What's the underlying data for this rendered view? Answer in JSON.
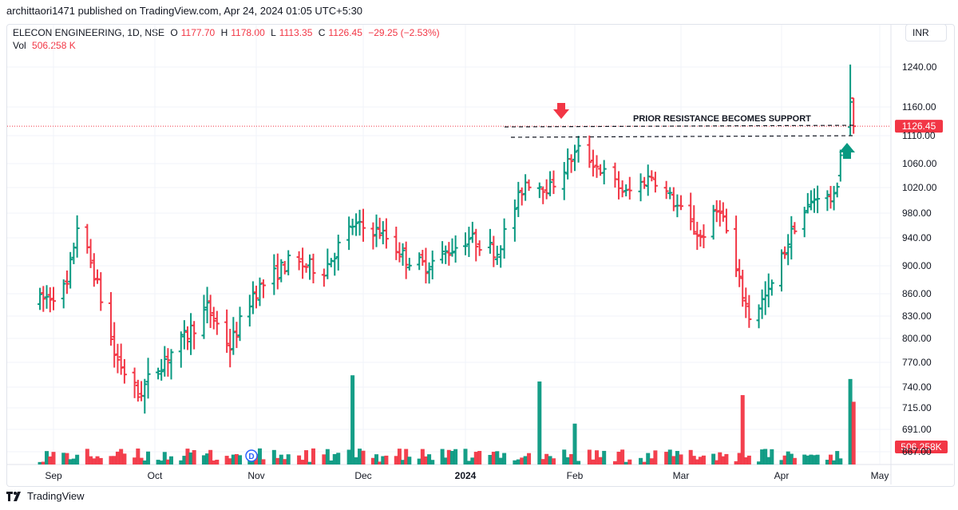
{
  "publisher_line": "archittaori1471 published on TradingView.com, Apr 24, 2024 01:05 UTC+5:30",
  "legend": {
    "symbol": "ELECON ENGINEERING, 1D, NSE",
    "open_label": "O",
    "open": "1177.70",
    "high_label": "H",
    "high": "1178.00",
    "low_label": "L",
    "low": "1113.35",
    "close_label": "C",
    "close": "1126.45",
    "change": "−29.25 (−2.53%)",
    "vol_label": "Vol",
    "vol": "506.258 K"
  },
  "currency": "INR",
  "footer_brand": "TradingView",
  "colors": {
    "up": "#089981",
    "down": "#f23645",
    "grid": "#f0f3fa",
    "text": "#131722"
  },
  "chart_data": {
    "type": "bar",
    "annotation": "PRIOR RESISTANCE BECOMES SUPPORT",
    "last_price_label": "1126.45",
    "last_volume_label": "506.258K",
    "y_ticks": [
      "1240.00",
      "1160.00",
      "1110.00",
      "1060.00",
      "1020.00",
      "980.00",
      "940.00",
      "900.00",
      "860.00",
      "830.00",
      "800.00",
      "770.00",
      "740.00",
      "715.00",
      "691.00",
      "667.00"
    ],
    "x_ticks": [
      "Sep",
      "Oct",
      "Nov",
      "Dec",
      "2024",
      "Feb",
      "Mar",
      "Apr",
      "May"
    ],
    "ohlc_anchors": [
      [
        "2023-08-28",
        850
      ],
      [
        "2023-09-05",
        870
      ],
      [
        "2023-09-08",
        960
      ],
      [
        "2023-09-13",
        890
      ],
      [
        "2023-09-19",
        780
      ],
      [
        "2023-09-26",
        730
      ],
      [
        "2023-10-03",
        770
      ],
      [
        "2023-10-10",
        800
      ],
      [
        "2023-10-17",
        840
      ],
      [
        "2023-10-24",
        790
      ],
      [
        "2023-10-31",
        860
      ],
      [
        "2023-11-10",
        905
      ],
      [
        "2023-11-20",
        895
      ],
      [
        "2023-11-28",
        960
      ],
      [
        "2023-12-06",
        950
      ],
      [
        "2023-12-14",
        910
      ],
      [
        "2023-12-20",
        900
      ],
      [
        "2024-01-02",
        940
      ],
      [
        "2024-01-10",
        920
      ],
      [
        "2024-01-18",
        1030
      ],
      [
        "2024-01-25",
        1020
      ],
      [
        "2024-02-02",
        1085
      ],
      [
        "2024-02-08",
        1050
      ],
      [
        "2024-02-15",
        1010
      ],
      [
        "2024-02-22",
        1040
      ],
      [
        "2024-02-29",
        990
      ],
      [
        "2024-03-07",
        940
      ],
      [
        "2024-03-13",
        990
      ],
      [
        "2024-03-18",
        890
      ],
      [
        "2024-03-22",
        830
      ],
      [
        "2024-03-28",
        860
      ],
      [
        "2024-04-05",
        960
      ],
      [
        "2024-04-12",
        1010
      ],
      [
        "2024-04-17",
        1000
      ],
      [
        "2024-04-19",
        1060
      ],
      [
        "2024-04-22",
        1160
      ],
      [
        "2024-04-23",
        1126.45
      ]
    ],
    "volume_spikes_k": [
      [
        "2023-11-28",
        720
      ],
      [
        "2024-01-22",
        670
      ],
      [
        "2024-02-01",
        330
      ],
      [
        "2024-03-20",
        560
      ],
      [
        "2024-04-22",
        690
      ],
      [
        "2024-04-23",
        506.258
      ]
    ]
  }
}
